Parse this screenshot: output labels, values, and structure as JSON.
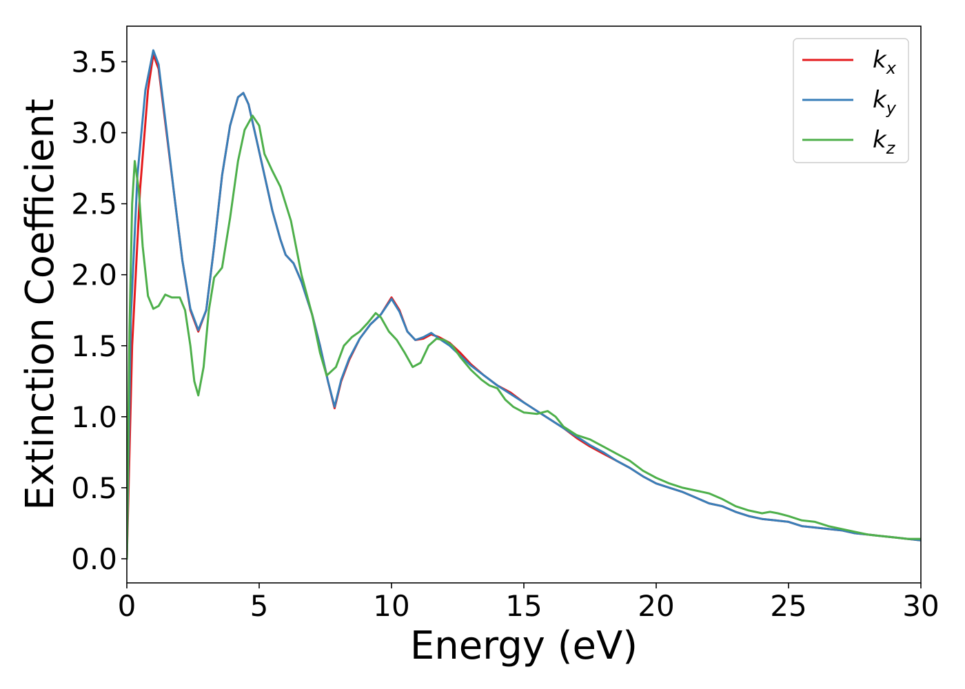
{
  "chart_data": {
    "type": "line",
    "xlabel": "Energy (eV)",
    "ylabel": "Extinction Coefficient",
    "xlim": [
      0,
      30
    ],
    "ylim": [
      -0.17,
      3.75
    ],
    "xticks": [
      0,
      5,
      10,
      15,
      20,
      25,
      30
    ],
    "xtick_labels": [
      "0",
      "5",
      "10",
      "15",
      "20",
      "25",
      "30"
    ],
    "yticks": [
      0.0,
      0.5,
      1.0,
      1.5,
      2.0,
      2.5,
      3.0,
      3.5
    ],
    "ytick_labels": [
      "0.0",
      "0.5",
      "1.0",
      "1.5",
      "2.0",
      "2.5",
      "3.0",
      "3.5"
    ],
    "grid": false,
    "legend_position": "top-right",
    "series": [
      {
        "name": "k",
        "subscript": "x",
        "color": "#e41a1c",
        "points": [
          [
            0,
            0.0
          ],
          [
            0.2,
            1.5
          ],
          [
            0.5,
            2.6
          ],
          [
            0.8,
            3.3
          ],
          [
            1.0,
            3.55
          ],
          [
            1.2,
            3.45
          ],
          [
            1.5,
            3.0
          ],
          [
            1.8,
            2.55
          ],
          [
            2.1,
            2.1
          ],
          [
            2.4,
            1.75
          ],
          [
            2.7,
            1.6
          ],
          [
            3.0,
            1.75
          ],
          [
            3.3,
            2.2
          ],
          [
            3.6,
            2.7
          ],
          [
            3.9,
            3.05
          ],
          [
            4.2,
            3.25
          ],
          [
            4.4,
            3.28
          ],
          [
            4.6,
            3.2
          ],
          [
            4.9,
            2.95
          ],
          [
            5.2,
            2.7
          ],
          [
            5.5,
            2.45
          ],
          [
            5.8,
            2.25
          ],
          [
            6.0,
            2.14
          ],
          [
            6.3,
            2.08
          ],
          [
            6.6,
            1.95
          ],
          [
            7.0,
            1.72
          ],
          [
            7.3,
            1.5
          ],
          [
            7.6,
            1.25
          ],
          [
            7.85,
            1.06
          ],
          [
            8.1,
            1.25
          ],
          [
            8.4,
            1.4
          ],
          [
            8.8,
            1.55
          ],
          [
            9.2,
            1.65
          ],
          [
            9.6,
            1.72
          ],
          [
            10.0,
            1.84
          ],
          [
            10.3,
            1.75
          ],
          [
            10.6,
            1.6
          ],
          [
            10.9,
            1.54
          ],
          [
            11.2,
            1.55
          ],
          [
            11.5,
            1.58
          ],
          [
            11.8,
            1.56
          ],
          [
            12.2,
            1.52
          ],
          [
            12.6,
            1.45
          ],
          [
            13.0,
            1.37
          ],
          [
            13.5,
            1.29
          ],
          [
            14.0,
            1.22
          ],
          [
            14.5,
            1.17
          ],
          [
            15.0,
            1.1
          ],
          [
            15.5,
            1.04
          ],
          [
            16.0,
            0.98
          ],
          [
            16.5,
            0.92
          ],
          [
            17.0,
            0.85
          ],
          [
            17.5,
            0.79
          ],
          [
            18.0,
            0.74
          ],
          [
            18.5,
            0.69
          ],
          [
            19.0,
            0.64
          ],
          [
            19.5,
            0.58
          ],
          [
            20.0,
            0.53
          ],
          [
            20.5,
            0.5
          ],
          [
            21.0,
            0.47
          ],
          [
            21.5,
            0.43
          ],
          [
            22.0,
            0.39
          ],
          [
            22.5,
            0.37
          ],
          [
            23.0,
            0.33
          ],
          [
            23.5,
            0.3
          ],
          [
            24.0,
            0.28
          ],
          [
            24.5,
            0.27
          ],
          [
            25.0,
            0.26
          ],
          [
            25.5,
            0.23
          ],
          [
            26.0,
            0.22
          ],
          [
            26.5,
            0.21
          ],
          [
            27.0,
            0.2
          ],
          [
            27.5,
            0.18
          ],
          [
            28.0,
            0.17
          ],
          [
            28.5,
            0.16
          ],
          [
            29.0,
            0.15
          ],
          [
            29.5,
            0.14
          ],
          [
            30.0,
            0.13
          ]
        ]
      },
      {
        "name": "k",
        "subscript": "y",
        "color": "#377eb8",
        "points": [
          [
            0,
            0.0
          ],
          [
            0.15,
            1.7
          ],
          [
            0.4,
            2.7
          ],
          [
            0.7,
            3.3
          ],
          [
            1.0,
            3.58
          ],
          [
            1.2,
            3.48
          ],
          [
            1.5,
            3.02
          ],
          [
            1.8,
            2.55
          ],
          [
            2.1,
            2.1
          ],
          [
            2.4,
            1.76
          ],
          [
            2.7,
            1.61
          ],
          [
            3.0,
            1.75
          ],
          [
            3.3,
            2.2
          ],
          [
            3.6,
            2.7
          ],
          [
            3.9,
            3.05
          ],
          [
            4.2,
            3.25
          ],
          [
            4.4,
            3.28
          ],
          [
            4.6,
            3.2
          ],
          [
            4.9,
            2.95
          ],
          [
            5.2,
            2.7
          ],
          [
            5.5,
            2.45
          ],
          [
            5.8,
            2.25
          ],
          [
            6.0,
            2.14
          ],
          [
            6.3,
            2.08
          ],
          [
            6.6,
            1.95
          ],
          [
            7.0,
            1.72
          ],
          [
            7.3,
            1.5
          ],
          [
            7.6,
            1.25
          ],
          [
            7.85,
            1.07
          ],
          [
            8.1,
            1.26
          ],
          [
            8.4,
            1.41
          ],
          [
            8.8,
            1.55
          ],
          [
            9.2,
            1.65
          ],
          [
            9.6,
            1.72
          ],
          [
            10.0,
            1.83
          ],
          [
            10.3,
            1.74
          ],
          [
            10.6,
            1.6
          ],
          [
            10.9,
            1.54
          ],
          [
            11.2,
            1.56
          ],
          [
            11.5,
            1.59
          ],
          [
            11.8,
            1.55
          ],
          [
            12.2,
            1.5
          ],
          [
            12.6,
            1.43
          ],
          [
            13.0,
            1.36
          ],
          [
            13.5,
            1.29
          ],
          [
            14.0,
            1.22
          ],
          [
            14.5,
            1.16
          ],
          [
            15.0,
            1.1
          ],
          [
            15.5,
            1.04
          ],
          [
            16.0,
            0.98
          ],
          [
            16.5,
            0.92
          ],
          [
            17.0,
            0.86
          ],
          [
            17.5,
            0.8
          ],
          [
            18.0,
            0.75
          ],
          [
            18.5,
            0.69
          ],
          [
            19.0,
            0.64
          ],
          [
            19.5,
            0.58
          ],
          [
            20.0,
            0.53
          ],
          [
            20.5,
            0.5
          ],
          [
            21.0,
            0.47
          ],
          [
            21.5,
            0.43
          ],
          [
            22.0,
            0.39
          ],
          [
            22.5,
            0.37
          ],
          [
            23.0,
            0.33
          ],
          [
            23.5,
            0.3
          ],
          [
            24.0,
            0.28
          ],
          [
            24.5,
            0.27
          ],
          [
            25.0,
            0.26
          ],
          [
            25.5,
            0.23
          ],
          [
            26.0,
            0.22
          ],
          [
            26.5,
            0.21
          ],
          [
            27.0,
            0.2
          ],
          [
            27.5,
            0.18
          ],
          [
            28.0,
            0.17
          ],
          [
            28.5,
            0.16
          ],
          [
            29.0,
            0.15
          ],
          [
            29.5,
            0.14
          ],
          [
            30.0,
            0.13
          ]
        ]
      },
      {
        "name": "k",
        "subscript": "z",
        "color": "#4daf4a",
        "points": [
          [
            0,
            0.0
          ],
          [
            0.1,
            1.6
          ],
          [
            0.2,
            2.5
          ],
          [
            0.3,
            2.8
          ],
          [
            0.45,
            2.6
          ],
          [
            0.6,
            2.2
          ],
          [
            0.8,
            1.85
          ],
          [
            1.0,
            1.76
          ],
          [
            1.2,
            1.78
          ],
          [
            1.45,
            1.86
          ],
          [
            1.7,
            1.84
          ],
          [
            2.0,
            1.84
          ],
          [
            2.2,
            1.75
          ],
          [
            2.4,
            1.5
          ],
          [
            2.55,
            1.25
          ],
          [
            2.7,
            1.15
          ],
          [
            2.9,
            1.35
          ],
          [
            3.1,
            1.75
          ],
          [
            3.3,
            1.98
          ],
          [
            3.6,
            2.05
          ],
          [
            3.9,
            2.4
          ],
          [
            4.2,
            2.8
          ],
          [
            4.45,
            3.02
          ],
          [
            4.75,
            3.12
          ],
          [
            5.0,
            3.05
          ],
          [
            5.2,
            2.85
          ],
          [
            5.5,
            2.73
          ],
          [
            5.8,
            2.62
          ],
          [
            6.2,
            2.38
          ],
          [
            6.6,
            2.0
          ],
          [
            7.0,
            1.72
          ],
          [
            7.3,
            1.45
          ],
          [
            7.55,
            1.29
          ],
          [
            7.9,
            1.35
          ],
          [
            8.2,
            1.5
          ],
          [
            8.5,
            1.56
          ],
          [
            8.8,
            1.6
          ],
          [
            9.1,
            1.66
          ],
          [
            9.4,
            1.73
          ],
          [
            9.6,
            1.7
          ],
          [
            9.9,
            1.6
          ],
          [
            10.2,
            1.54
          ],
          [
            10.5,
            1.45
          ],
          [
            10.8,
            1.35
          ],
          [
            11.1,
            1.38
          ],
          [
            11.4,
            1.5
          ],
          [
            11.7,
            1.55
          ],
          [
            12.0,
            1.54
          ],
          [
            12.3,
            1.5
          ],
          [
            12.6,
            1.42
          ],
          [
            13.0,
            1.33
          ],
          [
            13.4,
            1.26
          ],
          [
            13.7,
            1.22
          ],
          [
            14.0,
            1.2
          ],
          [
            14.3,
            1.12
          ],
          [
            14.6,
            1.07
          ],
          [
            15.0,
            1.03
          ],
          [
            15.5,
            1.02
          ],
          [
            15.9,
            1.04
          ],
          [
            16.2,
            1.0
          ],
          [
            16.5,
            0.93
          ],
          [
            17.0,
            0.87
          ],
          [
            17.5,
            0.84
          ],
          [
            18.0,
            0.79
          ],
          [
            18.5,
            0.74
          ],
          [
            19.0,
            0.69
          ],
          [
            19.5,
            0.62
          ],
          [
            20.0,
            0.57
          ],
          [
            20.5,
            0.53
          ],
          [
            21.0,
            0.5
          ],
          [
            21.5,
            0.48
          ],
          [
            22.0,
            0.46
          ],
          [
            22.5,
            0.42
          ],
          [
            23.0,
            0.37
          ],
          [
            23.5,
            0.34
          ],
          [
            24.0,
            0.32
          ],
          [
            24.3,
            0.33
          ],
          [
            24.6,
            0.32
          ],
          [
            25.0,
            0.3
          ],
          [
            25.5,
            0.27
          ],
          [
            26.0,
            0.26
          ],
          [
            26.5,
            0.23
          ],
          [
            27.0,
            0.21
          ],
          [
            27.5,
            0.19
          ],
          [
            28.0,
            0.17
          ],
          [
            28.5,
            0.16
          ],
          [
            29.0,
            0.15
          ],
          [
            29.5,
            0.14
          ],
          [
            30.0,
            0.14
          ]
        ]
      }
    ]
  }
}
